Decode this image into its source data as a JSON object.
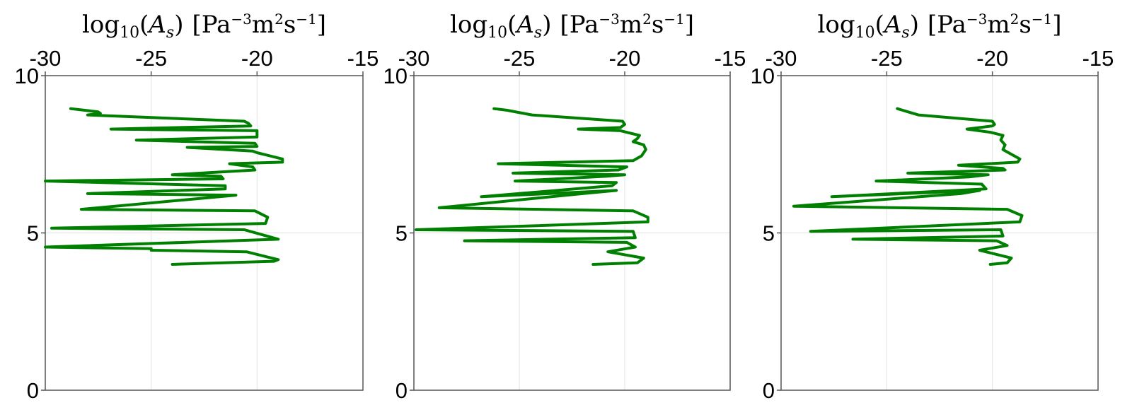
{
  "chart_data": [
    {
      "type": "line",
      "title": {
        "prefix": "log",
        "sub": "10",
        "arg_open": "(",
        "arg": "A",
        "arg_sub": "s",
        "arg_close": ")",
        "unit_open": "[Pa",
        "sup1": "−3",
        "mid1": "m",
        "sup2": "2",
        "mid2": "s",
        "sup3": "−1",
        "unit_close": "]"
      },
      "xlim": [
        -30,
        -15
      ],
      "ylim": [
        0,
        10
      ],
      "xticks": [
        -30,
        -25,
        -20,
        -15
      ],
      "xtick_labels": [
        "-30",
        "-25",
        "-20",
        "-15"
      ],
      "yticks": [
        0,
        5,
        10
      ],
      "ytick_labels": [
        "0",
        "5",
        "10"
      ],
      "grid": true,
      "color": "#008000",
      "x": [
        -28.8,
        -27.5,
        -27.4,
        -28.0,
        -20.6,
        -20.4,
        -20.3,
        -26.9,
        -20.0,
        -20.0,
        -25.7,
        -20.1,
        -20.0,
        -23.3,
        -20.2,
        -20.0,
        -18.8,
        -18.8,
        -21.3,
        -20.2,
        -20.1,
        -24.0,
        -21.7,
        -21.6,
        -30.0,
        -21.5,
        -21.5,
        -28.0,
        -21.0,
        -28.3,
        -20.1,
        -19.5,
        -19.6,
        -29.7,
        -20.6,
        -19.0,
        -30.0,
        -25.0,
        -25.0,
        -20.5,
        -19.0,
        -19.2,
        -24.0
      ],
      "y": [
        8.95,
        8.85,
        8.8,
        8.75,
        8.55,
        8.48,
        8.4,
        8.3,
        8.25,
        8.05,
        7.95,
        7.85,
        7.75,
        7.72,
        7.6,
        7.55,
        7.35,
        7.25,
        7.2,
        7.1,
        7.0,
        6.85,
        6.8,
        6.72,
        6.65,
        6.5,
        6.4,
        6.25,
        6.2,
        5.75,
        5.7,
        5.5,
        5.3,
        5.15,
        5.1,
        4.8,
        4.55,
        4.5,
        4.45,
        4.4,
        4.15,
        4.1,
        4.0
      ]
    },
    {
      "type": "line",
      "title": {
        "prefix": "log",
        "sub": "10",
        "arg_open": "(",
        "arg": "A",
        "arg_sub": "s",
        "arg_close": ")",
        "unit_open": "[Pa",
        "sup1": "−3",
        "mid1": "m",
        "sup2": "2",
        "mid2": "s",
        "sup3": "−1",
        "unit_close": "]"
      },
      "xlim": [
        -30,
        -15
      ],
      "ylim": [
        0,
        10
      ],
      "xticks": [
        -30,
        -25,
        -20,
        -15
      ],
      "xtick_labels": [
        "-30",
        "-25",
        "-20",
        "-15"
      ],
      "yticks": [
        0,
        5,
        10
      ],
      "ytick_labels": [
        "0",
        "5",
        "10"
      ],
      "grid": true,
      "color": "#008000",
      "x": [
        -26.2,
        -25.6,
        -24.4,
        -20.1,
        -20.0,
        -20.2,
        -22.2,
        -20.2,
        -19.3,
        -19.4,
        -19.6,
        -19.1,
        -19.0,
        -19.2,
        -19.6,
        -26.0,
        -19.9,
        -20.3,
        -25.3,
        -20.0,
        -20.9,
        -25.2,
        -20.4,
        -20.6,
        -26.8,
        -20.4,
        -22.0,
        -28.8,
        -19.6,
        -18.9,
        -18.9,
        -29.9,
        -19.6,
        -19.5,
        -27.6,
        -19.9,
        -19.5,
        -20.8,
        -19.1,
        -19.4,
        -21.5
      ],
      "y": [
        8.95,
        8.9,
        8.75,
        8.55,
        8.45,
        8.35,
        8.3,
        8.25,
        8.1,
        8.0,
        7.9,
        7.8,
        7.65,
        7.45,
        7.3,
        7.2,
        7.1,
        7.0,
        6.9,
        6.85,
        6.8,
        6.65,
        6.6,
        6.5,
        6.15,
        6.35,
        6.25,
        5.8,
        5.7,
        5.5,
        5.35,
        5.1,
        5.05,
        4.85,
        4.75,
        4.7,
        4.55,
        4.4,
        4.2,
        4.05,
        4.0
      ]
    },
    {
      "type": "line",
      "title": {
        "prefix": "log",
        "sub": "10",
        "arg_open": "(",
        "arg": "A",
        "arg_sub": "s",
        "arg_close": ")",
        "unit_open": "[Pa",
        "sup1": "−3",
        "mid1": "m",
        "sup2": "2",
        "mid2": "s",
        "sup3": "−1",
        "unit_close": "]"
      },
      "xlim": [
        -30,
        -15
      ],
      "ylim": [
        0,
        10
      ],
      "xticks": [
        -30,
        -25,
        -20,
        -15
      ],
      "xtick_labels": [
        "-30",
        "-25",
        "-20",
        "-15"
      ],
      "yticks": [
        0,
        5,
        10
      ],
      "ytick_labels": [
        "0",
        "5",
        "10"
      ],
      "grid": true,
      "color": "#008000",
      "x": [
        -24.5,
        -24.0,
        -23.5,
        -20.0,
        -19.9,
        -20.0,
        -21.2,
        -20.1,
        -19.5,
        -19.6,
        -19.4,
        -19.5,
        -19.1,
        -18.7,
        -18.8,
        -21.6,
        -19.5,
        -19.4,
        -24.0,
        -20.2,
        -21.1,
        -25.5,
        -20.5,
        -20.3,
        -27.6,
        -20.6,
        -21.5,
        -29.4,
        -19.3,
        -18.6,
        -18.7,
        -28.6,
        -19.6,
        -19.5,
        -26.6,
        -19.8,
        -19.3,
        -20.6,
        -19.1,
        -19.3,
        -20.1
      ],
      "y": [
        8.95,
        8.85,
        8.75,
        8.55,
        8.45,
        8.4,
        8.3,
        8.2,
        8.1,
        7.95,
        7.8,
        7.65,
        7.5,
        7.35,
        7.25,
        7.15,
        7.05,
        7.0,
        6.9,
        6.85,
        6.78,
        6.65,
        6.55,
        6.4,
        6.15,
        6.35,
        6.25,
        5.85,
        5.75,
        5.55,
        5.35,
        5.05,
        5.1,
        4.9,
        4.8,
        4.75,
        4.6,
        4.45,
        4.2,
        4.05,
        4.0
      ]
    }
  ]
}
